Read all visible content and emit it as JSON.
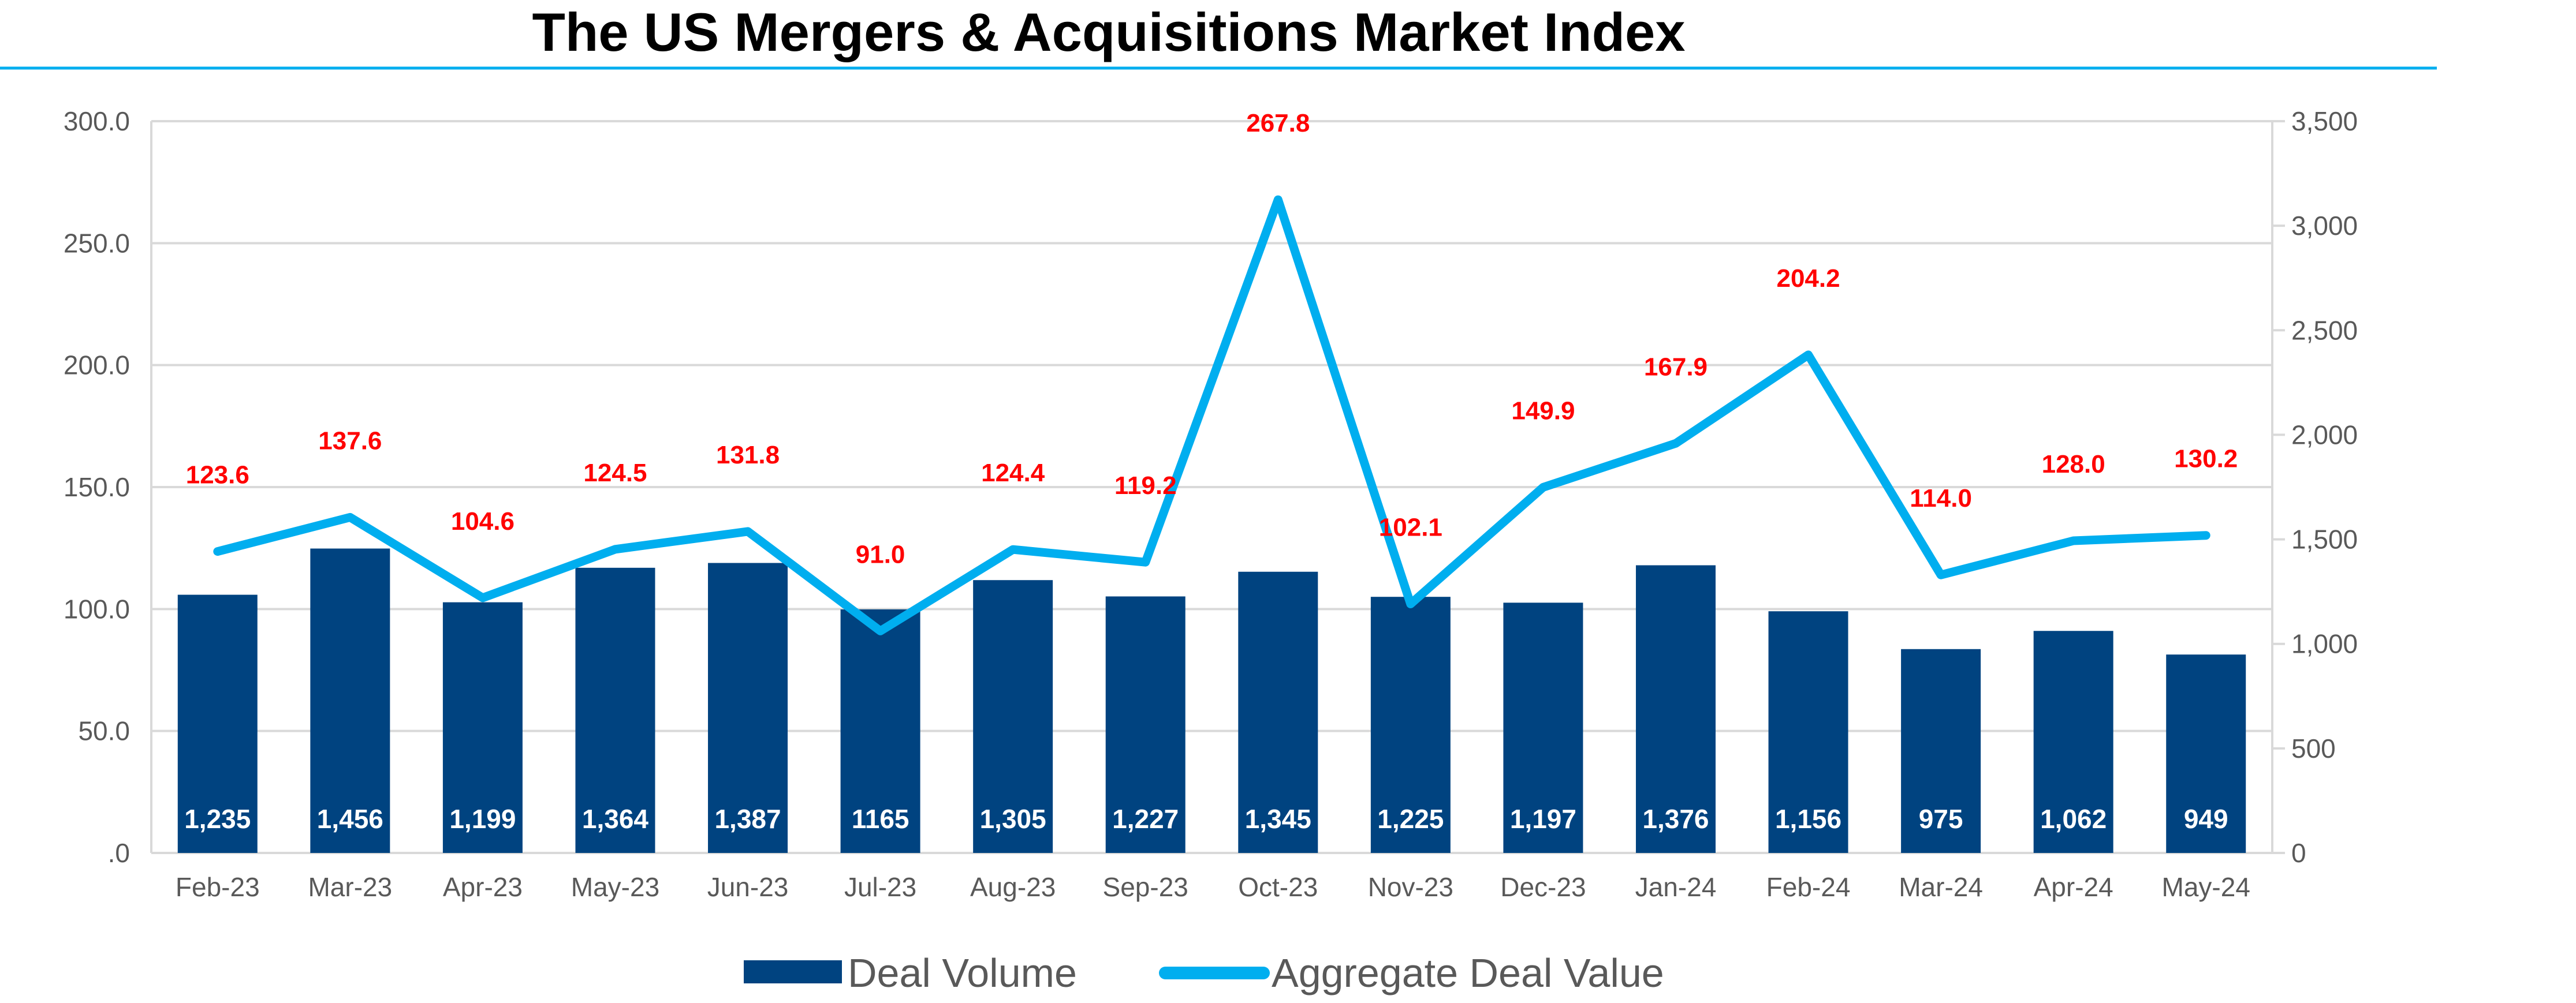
{
  "chart_data": {
    "type": "bar+line",
    "title": "The US Mergers & Acquisitions Market Index",
    "categories": [
      "Feb-23",
      "Mar-23",
      "Apr-23",
      "May-23",
      "Jun-23",
      "Jul-23",
      "Aug-23",
      "Sep-23",
      "Oct-23",
      "Nov-23",
      "Dec-23",
      "Jan-24",
      "Feb-24",
      "Mar-24",
      "Apr-24",
      "May-24"
    ],
    "series": [
      {
        "name": "Deal Volume",
        "type": "bar",
        "axis": "right",
        "values": [
          1235,
          1456,
          1199,
          1364,
          1387,
          1165,
          1305,
          1227,
          1345,
          1225,
          1197,
          1376,
          1156,
          975,
          1062,
          949
        ],
        "labels": [
          "1,235",
          "1,456",
          "1,199",
          "1,364",
          "1,387",
          "1165",
          "1,305",
          "1,227",
          "1,345",
          "1,225",
          "1,197",
          "1,376",
          "1,156",
          "975",
          "1,062",
          "949"
        ]
      },
      {
        "name": "Aggregate Deal Value",
        "type": "line",
        "axis": "left",
        "values": [
          123.6,
          137.6,
          104.6,
          124.5,
          131.8,
          91.0,
          124.4,
          119.2,
          267.8,
          102.1,
          149.9,
          167.9,
          204.2,
          114.0,
          128.0,
          130.2
        ],
        "labels": [
          "123.6",
          "137.6",
          "104.6",
          "124.5",
          "131.8",
          "91.0",
          "124.4",
          "119.2",
          "267.8",
          "102.1",
          "149.9",
          "167.9",
          "204.2",
          "114.0",
          "128.0",
          "130.2"
        ]
      }
    ],
    "y_left": {
      "range": [
        0,
        300
      ],
      "ticks": [
        0,
        50,
        100,
        150,
        200,
        250,
        300
      ],
      "tick_labels": [
        ".0",
        "50.0",
        "100.0",
        "150.0",
        "200.0",
        "250.0",
        "300.0"
      ]
    },
    "y_right": {
      "range": [
        0,
        3500
      ],
      "ticks": [
        0,
        500,
        1000,
        1500,
        2000,
        2500,
        3000,
        3500
      ],
      "tick_labels": [
        "0",
        "500",
        "1,000",
        "1,500",
        "2,000",
        "2,500",
        "3,000",
        "3,500"
      ]
    },
    "grid": true,
    "legend_position": "bottom-center",
    "colors": {
      "bar": "#004380",
      "line": "#00aeef",
      "line_label": "#ff0000",
      "bar_label": "#ffffff",
      "title_rule": "#00aeef",
      "grid": "#d9d9d9"
    }
  }
}
